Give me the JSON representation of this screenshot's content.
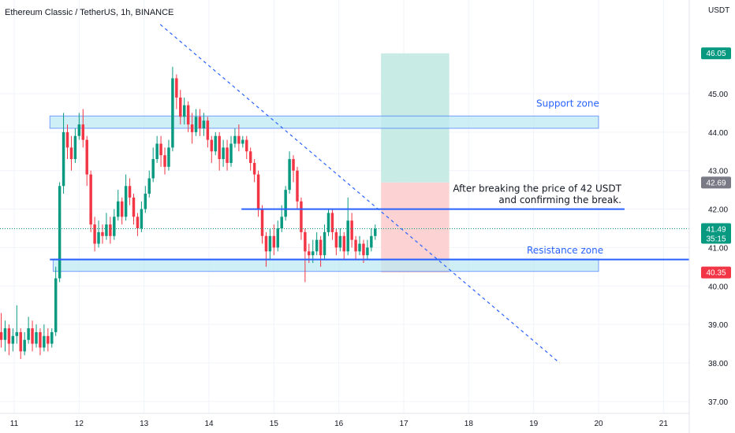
{
  "header": {
    "title": "Ethereum Classic / TetherUS, 1h, BINANCE"
  },
  "price_scale": {
    "unit": "USDT"
  },
  "chart_data": {
    "type": "candlestick",
    "title": "Ethereum Classic / TetherUS, 1h, BINANCE",
    "ylabel": "USDT",
    "ylim": [
      36.8,
      47.0
    ],
    "xlim": [
      10.8,
      21.5
    ],
    "y_ticks": [
      37,
      38,
      39,
      40,
      41,
      42,
      43,
      44,
      45
    ],
    "y_tick_labels": [
      "37.00",
      "38.00",
      "39.00",
      "40.00",
      "41.00",
      "42.00",
      "43.00",
      "44.00",
      "45.00"
    ],
    "x_ticks": [
      11,
      12,
      13,
      14,
      15,
      16,
      17,
      18,
      19,
      20,
      21
    ],
    "x_tick_labels": [
      "11",
      "12",
      "13",
      "14",
      "15",
      "16",
      "17",
      "18",
      "19",
      "20",
      "21"
    ],
    "grid": true,
    "price_labels": [
      {
        "value": 46.05,
        "text": "46.05",
        "color": "#089981"
      },
      {
        "value": 42.69,
        "text": "42.69",
        "color": "#787b86"
      },
      {
        "value": 41.49,
        "text": "41.49",
        "sub": "35:15",
        "color": "#089981"
      },
      {
        "value": 40.35,
        "text": "40.35",
        "color": "#f23645"
      }
    ],
    "current_price": 41.49,
    "colors": {
      "up": "#089981",
      "down": "#f23645",
      "zone": "#2962ff",
      "zone_fill": "#bde9f1",
      "target_fill": "#c9ebe6",
      "stop_fill": "#fcd2d2"
    },
    "zones": [
      {
        "label": "Support zone",
        "x0": 11.55,
        "x1": 20.0,
        "y0": 44.1,
        "y1": 44.42
      },
      {
        "label": "Resistance zone",
        "x0": 11.6,
        "x1": 20.0,
        "y0": 40.38,
        "y1": 40.7
      }
    ],
    "hlines": [
      {
        "x0": 14.5,
        "x1": 20.4,
        "y": 42.0
      },
      {
        "x0": 11.55,
        "x1": 21.4,
        "y": 40.69
      }
    ],
    "trendline": {
      "x0": 13.25,
      "y0": 46.8,
      "x1": 19.4,
      "y1": 38.0,
      "dashed": true
    },
    "position": {
      "x0": 16.65,
      "x1": 17.7,
      "entry": 42.69,
      "target": 46.05,
      "stop": 40.35
    },
    "annotation": {
      "lines": [
        "After breaking the price of  42 USDT",
        "and confirming the break."
      ]
    },
    "candles": [
      [
        10.8,
        38.8,
        38.6,
        39.3,
        38.4
      ],
      [
        10.86,
        38.6,
        38.9,
        39.1,
        38.3
      ],
      [
        10.92,
        38.9,
        38.5,
        39.0,
        38.2
      ],
      [
        10.98,
        38.5,
        38.7,
        38.9,
        38.3
      ],
      [
        11.04,
        38.7,
        38.8,
        39.5,
        38.5
      ],
      [
        11.1,
        38.8,
        38.3,
        38.9,
        38.1
      ],
      [
        11.16,
        38.3,
        38.6,
        38.8,
        38.2
      ],
      [
        11.22,
        38.6,
        38.9,
        39.2,
        38.5
      ],
      [
        11.28,
        38.9,
        38.5,
        39.1,
        38.3
      ],
      [
        11.34,
        38.5,
        38.8,
        39.0,
        38.4
      ],
      [
        11.4,
        38.8,
        38.4,
        38.9,
        38.2
      ],
      [
        11.46,
        38.4,
        38.7,
        39.0,
        38.3
      ],
      [
        11.52,
        38.7,
        38.5,
        38.9,
        38.3
      ],
      [
        11.58,
        38.5,
        38.8,
        38.9,
        38.4
      ],
      [
        11.64,
        38.8,
        40.2,
        40.5,
        38.7
      ],
      [
        11.7,
        40.2,
        42.6,
        42.7,
        40.1
      ],
      [
        11.76,
        42.6,
        44.0,
        44.5,
        42.4
      ],
      [
        11.82,
        44.0,
        43.6,
        44.2,
        43.3
      ],
      [
        11.88,
        43.6,
        43.3,
        43.9,
        43.0
      ],
      [
        11.94,
        43.3,
        43.9,
        44.1,
        43.2
      ],
      [
        12.0,
        43.9,
        44.2,
        44.5,
        43.8
      ],
      [
        12.06,
        44.2,
        43.8,
        44.6,
        43.6
      ],
      [
        12.12,
        43.8,
        42.9,
        43.9,
        42.6
      ],
      [
        12.18,
        42.9,
        41.6,
        43.0,
        41.4
      ],
      [
        12.24,
        41.6,
        41.1,
        41.8,
        40.9
      ],
      [
        12.3,
        41.1,
        41.4,
        41.7,
        41.0
      ],
      [
        12.36,
        41.4,
        41.3,
        41.6,
        41.1
      ],
      [
        12.42,
        41.3,
        41.6,
        41.9,
        41.2
      ],
      [
        12.48,
        41.6,
        41.3,
        41.8,
        41.1
      ],
      [
        12.54,
        41.3,
        41.8,
        42.0,
        41.2
      ],
      [
        12.6,
        41.8,
        42.2,
        42.5,
        41.7
      ],
      [
        12.66,
        42.2,
        41.8,
        42.3,
        41.6
      ],
      [
        12.72,
        41.8,
        42.6,
        42.9,
        41.7
      ],
      [
        12.78,
        42.6,
        42.3,
        42.8,
        42.1
      ],
      [
        12.84,
        42.3,
        41.8,
        42.4,
        41.6
      ],
      [
        12.9,
        41.8,
        41.5,
        41.9,
        41.3
      ],
      [
        12.96,
        41.5,
        42.0,
        42.2,
        41.4
      ],
      [
        13.02,
        42.0,
        42.4,
        42.6,
        41.9
      ],
      [
        13.08,
        42.4,
        42.8,
        43.0,
        42.3
      ],
      [
        13.14,
        42.8,
        43.3,
        43.6,
        42.7
      ],
      [
        13.2,
        43.3,
        43.7,
        43.9,
        43.2
      ],
      [
        13.26,
        43.7,
        43.4,
        43.9,
        43.1
      ],
      [
        13.32,
        43.4,
        43.1,
        43.6,
        42.9
      ],
      [
        13.38,
        43.1,
        43.6,
        43.8,
        43.0
      ],
      [
        13.44,
        43.6,
        45.4,
        45.7,
        43.5
      ],
      [
        13.5,
        45.4,
        44.9,
        45.5,
        44.6
      ],
      [
        13.56,
        44.9,
        44.4,
        45.1,
        44.2
      ],
      [
        13.62,
        44.4,
        44.7,
        44.9,
        44.2
      ],
      [
        13.68,
        44.7,
        44.2,
        44.8,
        44.0
      ],
      [
        13.74,
        44.2,
        44.0,
        44.5,
        43.7
      ],
      [
        13.8,
        44.0,
        44.4,
        44.6,
        43.9
      ],
      [
        13.86,
        44.4,
        44.1,
        44.6,
        43.9
      ],
      [
        13.92,
        44.1,
        44.3,
        44.5,
        43.9
      ],
      [
        13.98,
        44.3,
        43.8,
        44.4,
        43.6
      ],
      [
        14.04,
        43.8,
        43.5,
        43.9,
        43.2
      ],
      [
        14.1,
        43.5,
        43.9,
        44.0,
        43.4
      ],
      [
        14.16,
        43.9,
        43.3,
        44.0,
        43.0
      ],
      [
        14.22,
        43.3,
        43.6,
        43.8,
        43.1
      ],
      [
        14.28,
        43.6,
        43.2,
        43.8,
        43.0
      ],
      [
        14.34,
        43.2,
        43.7,
        43.9,
        43.1
      ],
      [
        14.4,
        43.7,
        43.9,
        44.1,
        43.6
      ],
      [
        14.46,
        43.9,
        43.7,
        44.2,
        43.5
      ],
      [
        14.52,
        43.7,
        43.8,
        43.9,
        43.6
      ],
      [
        14.58,
        43.8,
        43.5,
        43.9,
        43.3
      ],
      [
        14.64,
        43.5,
        43.2,
        43.6,
        43.0
      ],
      [
        14.7,
        43.2,
        42.9,
        43.3,
        42.7
      ],
      [
        14.76,
        42.9,
        42.0,
        43.0,
        41.8
      ],
      [
        14.82,
        42.0,
        41.3,
        42.1,
        41.1
      ],
      [
        14.88,
        41.3,
        40.9,
        41.4,
        40.5
      ],
      [
        14.94,
        40.9,
        41.3,
        41.5,
        40.7
      ],
      [
        15.0,
        41.3,
        41.0,
        41.6,
        40.8
      ],
      [
        15.06,
        41.0,
        41.5,
        41.7,
        40.9
      ],
      [
        15.12,
        41.5,
        41.8,
        42.1,
        41.4
      ],
      [
        15.18,
        41.8,
        42.5,
        42.6,
        41.7
      ],
      [
        15.24,
        42.5,
        43.3,
        43.5,
        42.4
      ],
      [
        15.3,
        43.3,
        43.0,
        43.4,
        42.7
      ],
      [
        15.36,
        43.0,
        42.2,
        43.1,
        42.0
      ],
      [
        15.42,
        42.2,
        41.4,
        42.3,
        41.2
      ],
      [
        15.48,
        41.4,
        40.9,
        41.5,
        40.1
      ],
      [
        15.54,
        40.9,
        40.8,
        41.1,
        40.6
      ],
      [
        15.6,
        40.8,
        40.9,
        41.2,
        40.6
      ],
      [
        15.66,
        40.9,
        41.2,
        41.4,
        40.8
      ],
      [
        15.72,
        41.2,
        40.8,
        41.3,
        40.5
      ],
      [
        15.78,
        40.8,
        41.4,
        41.6,
        40.7
      ],
      [
        15.84,
        41.4,
        41.9,
        42.0,
        41.3
      ],
      [
        15.9,
        41.9,
        41.4,
        42.0,
        41.2
      ],
      [
        15.96,
        41.4,
        41.0,
        41.5,
        40.8
      ],
      [
        16.02,
        41.0,
        41.3,
        41.5,
        40.9
      ],
      [
        16.08,
        41.3,
        40.9,
        41.4,
        40.7
      ],
      [
        16.14,
        40.9,
        41.7,
        42.3,
        40.8
      ],
      [
        16.2,
        41.7,
        41.2,
        41.9,
        41.0
      ],
      [
        16.26,
        41.2,
        40.9,
        41.3,
        40.7
      ],
      [
        16.32,
        40.9,
        41.1,
        41.3,
        40.8
      ],
      [
        16.38,
        41.1,
        40.8,
        41.2,
        40.6
      ],
      [
        16.44,
        40.8,
        41.0,
        41.2,
        40.7
      ],
      [
        16.5,
        41.0,
        41.3,
        41.5,
        40.9
      ],
      [
        16.56,
        41.3,
        41.49,
        41.6,
        41.2
      ]
    ]
  }
}
